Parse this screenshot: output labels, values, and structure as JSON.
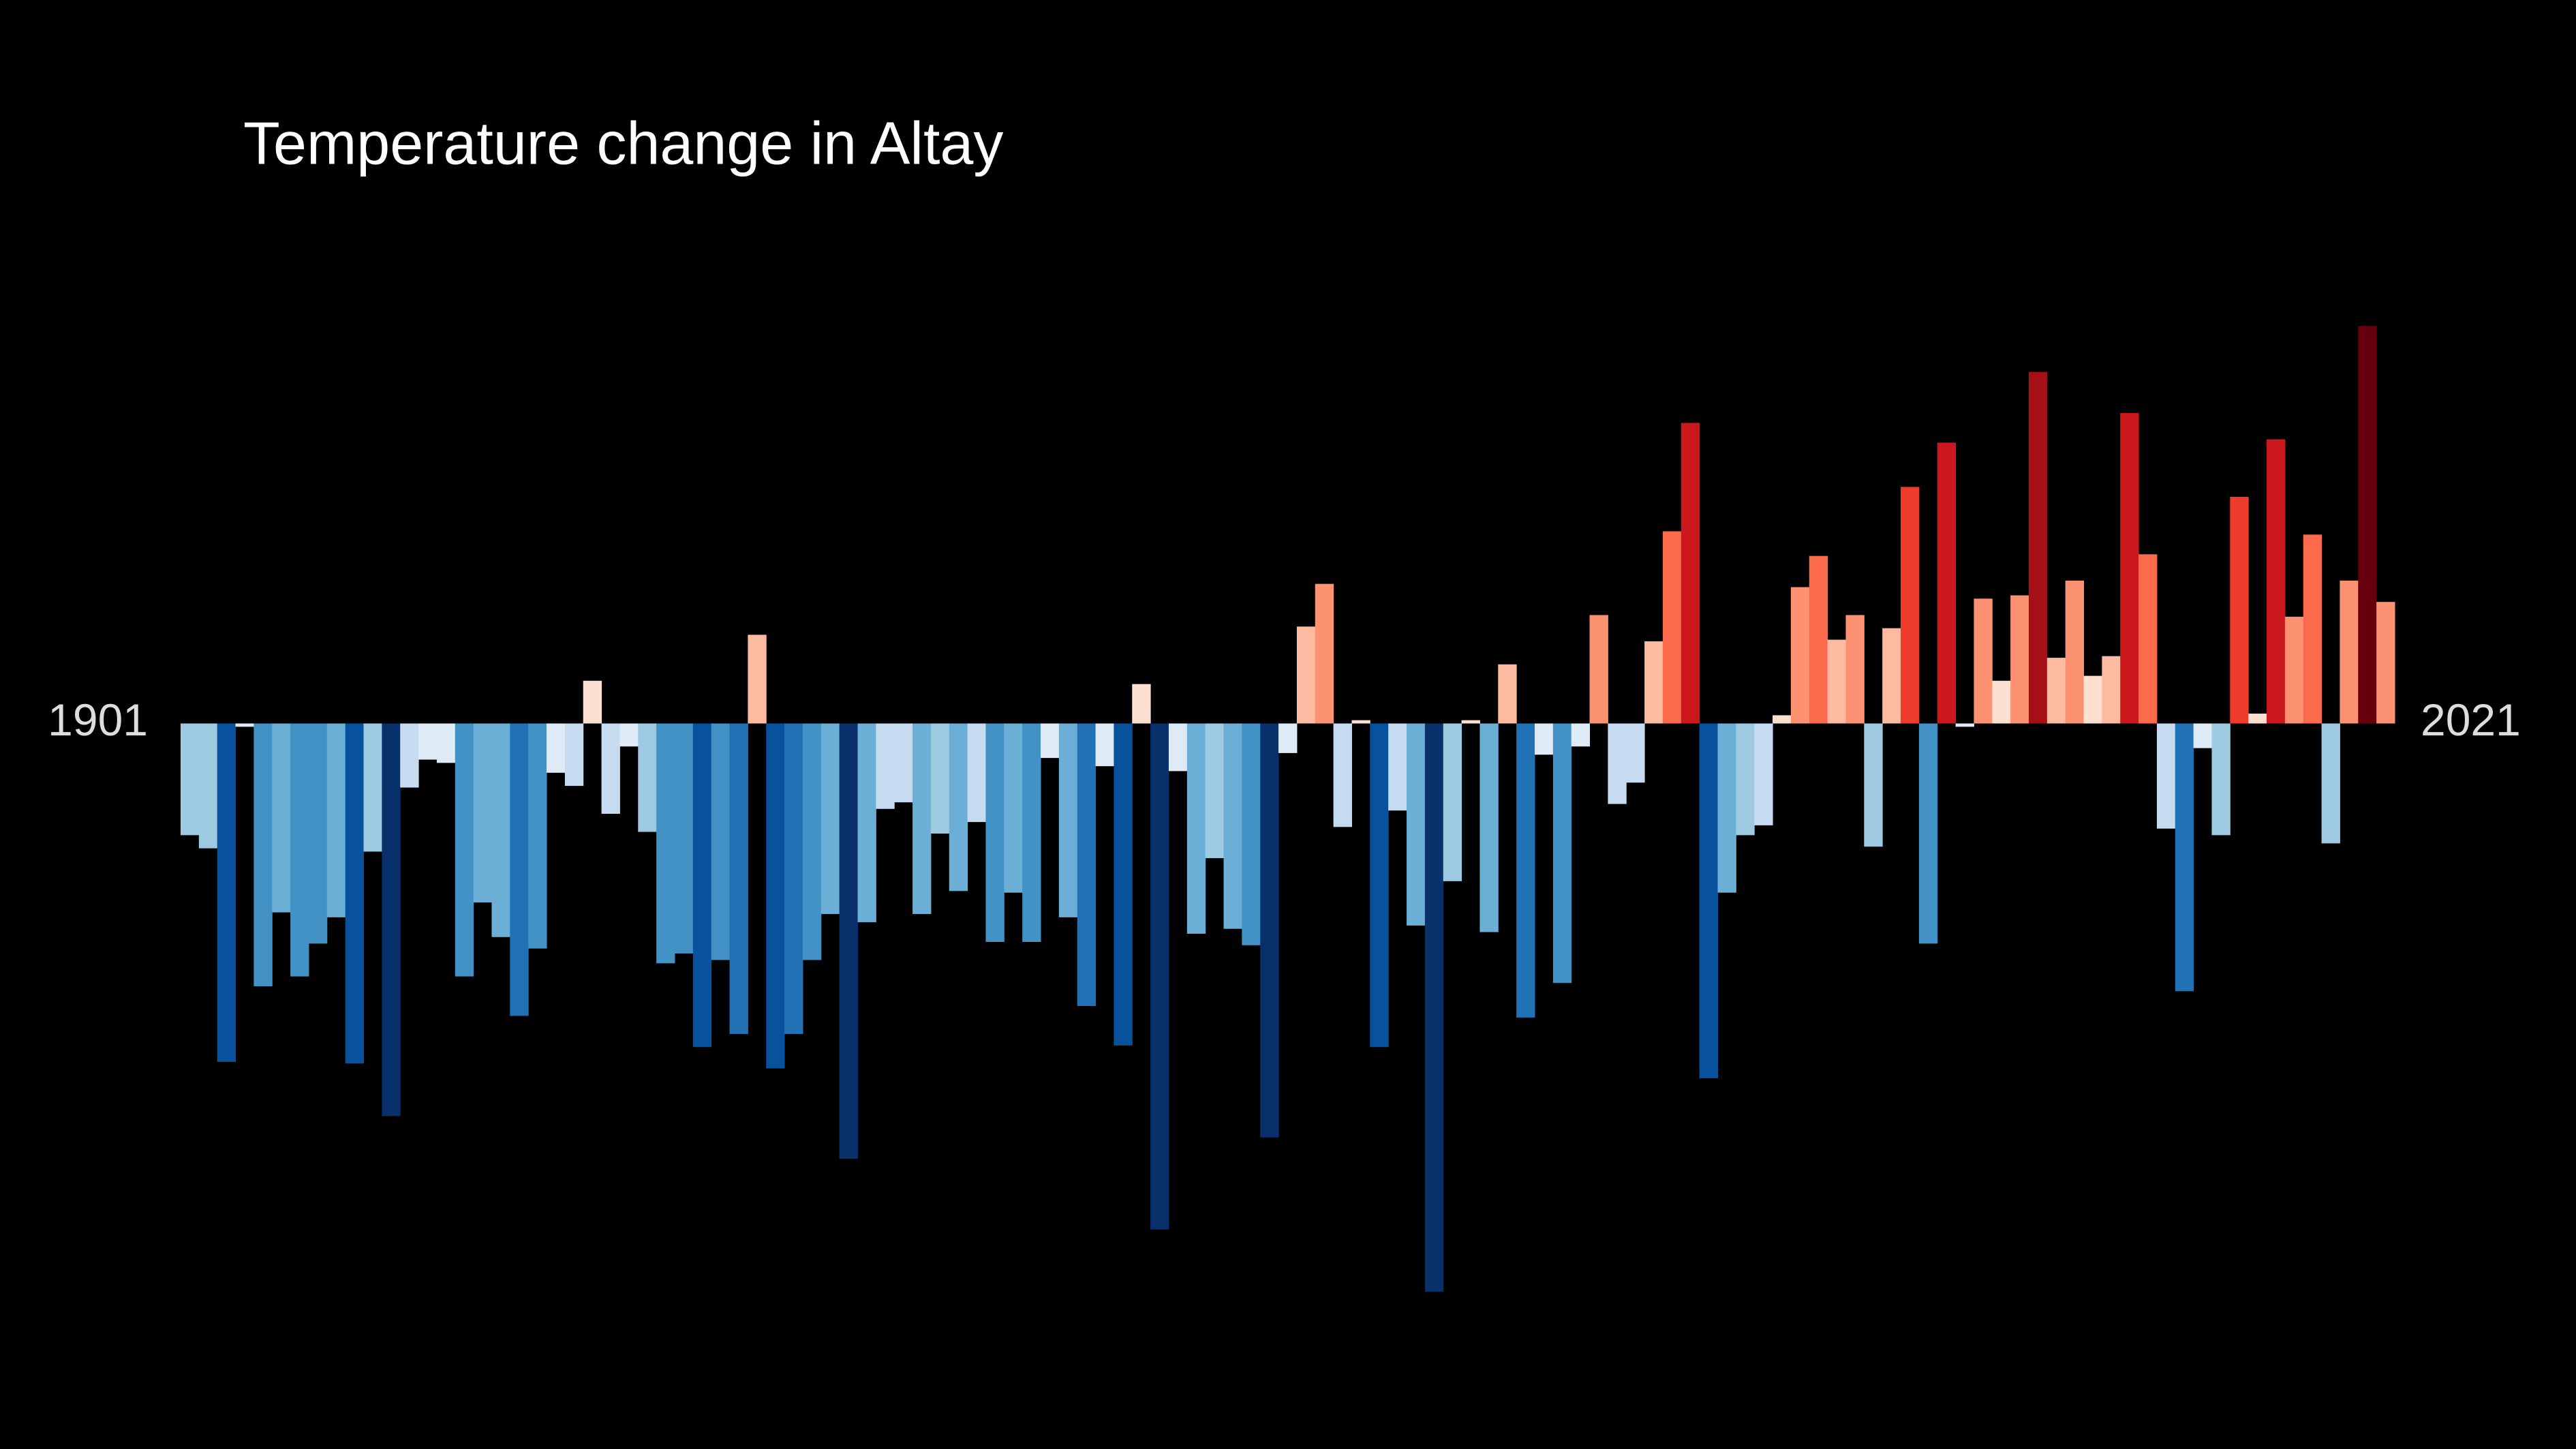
{
  "chart_data": {
    "type": "bar",
    "title": "Temperature change in Altay",
    "categories": [
      "1901",
      null,
      null,
      null,
      null,
      null,
      null,
      null,
      null,
      null,
      null,
      null,
      null,
      null,
      null,
      null,
      null,
      null,
      null,
      null,
      null,
      null,
      null,
      null,
      null,
      null,
      null,
      null,
      null,
      null,
      null,
      null,
      null,
      null,
      null,
      null,
      null,
      null,
      null,
      null,
      null,
      null,
      null,
      null,
      null,
      null,
      null,
      null,
      null,
      null,
      null,
      null,
      null,
      null,
      null,
      null,
      null,
      null,
      null,
      null,
      null,
      null,
      null,
      null,
      null,
      null,
      null,
      null,
      null,
      null,
      null,
      null,
      null,
      null,
      null,
      null,
      null,
      null,
      null,
      null,
      null,
      null,
      null,
      null,
      null,
      null,
      null,
      null,
      null,
      null,
      null,
      null,
      null,
      null,
      null,
      null,
      null,
      null,
      null,
      null,
      null,
      null,
      null,
      null,
      null,
      null,
      null,
      null,
      null,
      null,
      null,
      null,
      null,
      null,
      null,
      null,
      null,
      null,
      null,
      null,
      "2021"
    ],
    "values": [
      -0.68,
      -0.76,
      -2.06,
      -0.02,
      -1.6,
      -1.15,
      -1.54,
      -1.34,
      -1.18,
      -2.07,
      -0.78,
      -2.39,
      -0.39,
      -0.22,
      -0.24,
      -1.54,
      -1.09,
      -1.3,
      -1.78,
      -1.37,
      -0.3,
      -0.38,
      0.26,
      -0.55,
      -0.14,
      -0.66,
      -1.46,
      -1.4,
      -1.97,
      -1.44,
      -1.89,
      0.54,
      -2.1,
      -1.89,
      -1.44,
      -1.16,
      -2.65,
      -1.21,
      -0.52,
      -0.48,
      -1.16,
      -0.67,
      -1.02,
      -0.6,
      -1.33,
      -1.03,
      -1.33,
      -0.21,
      -1.18,
      -1.72,
      -0.26,
      -1.96,
      0.24,
      -3.08,
      -0.29,
      -1.28,
      -0.82,
      -1.25,
      -1.35,
      -2.52,
      -0.18,
      0.59,
      0.85,
      -0.63,
      0.02,
      -1.97,
      -0.53,
      -1.23,
      -3.46,
      -0.96,
      0.02,
      -1.27,
      0.36,
      -1.79,
      -0.19,
      -1.58,
      -0.14,
      0.66,
      -0.49,
      -0.36,
      0.5,
      1.17,
      1.83,
      -2.16,
      -1.03,
      -0.68,
      -0.62,
      0.05,
      0.83,
      1.02,
      0.51,
      0.66,
      -0.75,
      0.58,
      1.44,
      -1.34,
      1.71,
      -0.02,
      0.76,
      0.26,
      0.78,
      2.14,
      0.4,
      0.87,
      0.29,
      0.41,
      1.89,
      1.03,
      -0.64,
      -1.63,
      -0.15,
      -0.68,
      1.38,
      0.06,
      1.73,
      0.65,
      1.15,
      -0.73,
      0.87,
      2.42,
      0.74
    ],
    "ylim": [
      -3.5,
      2.5
    ],
    "colors": [
      "#08306b",
      "#08519c",
      "#2171b5",
      "#4292c6",
      "#6baed6",
      "#9ecae1",
      "#c6dbef",
      "#deebf7",
      "#fee0d2",
      "#fcbba1",
      "#fc9272",
      "#fb6a4a",
      "#ef3b2c",
      "#cb181d",
      "#a50f15",
      "#67000d"
    ],
    "clim": [
      -2.6,
      2.6
    ]
  }
}
